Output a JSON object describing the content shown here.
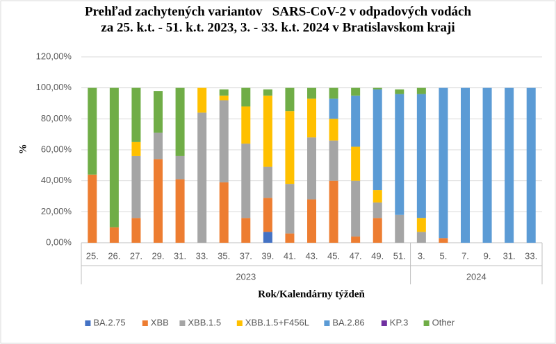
{
  "chart_data": {
    "type": "stacked_bar",
    "title": [
      "Prehľad zachytených variantov   SARS-CoV-2 v odpadových vodách",
      "za 25. k.t. - 51. k.t. 2023, 3. - 33. k.t. 2024 v Bratislavskom kraji"
    ],
    "x_label": "Rok/Kalendárny týždeň",
    "y_label": "%",
    "groups": [
      {
        "label": "2023",
        "categories": [
          "25.",
          "26.",
          "27.",
          "29.",
          "31.",
          "33.",
          "35.",
          "37.",
          "39.",
          "41.",
          "43.",
          "45.",
          "47.",
          "49.",
          "51."
        ]
      },
      {
        "label": "2024",
        "categories": [
          "3.",
          "5.",
          "7.",
          "9.",
          "31.",
          "33."
        ]
      }
    ],
    "ylim": [
      0,
      120
    ],
    "yticks": [
      {
        "value": 0,
        "label": "0,00%"
      },
      {
        "value": 20,
        "label": "20,00%"
      },
      {
        "value": 40,
        "label": "40,00%"
      },
      {
        "value": 60,
        "label": "60,00%"
      },
      {
        "value": 80,
        "label": "80,00%"
      },
      {
        "value": 100,
        "label": "100,00%"
      },
      {
        "value": 120,
        "label": "120,00%"
      }
    ],
    "grid": true,
    "legend": "bottom",
    "series": [
      {
        "name": "BA.2.75",
        "color": "#4472c4",
        "values": [
          0,
          0,
          0,
          0,
          0,
          0,
          0,
          0,
          7,
          0,
          0,
          0,
          0,
          0,
          0,
          0,
          0,
          0,
          0,
          0,
          0
        ]
      },
      {
        "name": "XBB",
        "color": "#ed7d31",
        "values": [
          44,
          10,
          16,
          54,
          41,
          0,
          39,
          16,
          22,
          6,
          28,
          40,
          4,
          16,
          0,
          0,
          3,
          0,
          0,
          0,
          0
        ]
      },
      {
        "name": "XBB.1.5",
        "color": "#a5a5a5",
        "values": [
          0,
          0,
          40,
          17,
          15,
          84,
          53,
          48,
          20,
          32,
          40,
          26,
          36,
          10,
          18,
          7,
          0,
          0,
          0,
          0,
          0
        ]
      },
      {
        "name": "XBB.1.5+F456L",
        "color": "#ffc000",
        "values": [
          0,
          0,
          9,
          0,
          0,
          16,
          3,
          24,
          46,
          47,
          25,
          14,
          22,
          8,
          0,
          9,
          0,
          0,
          0,
          0,
          0
        ]
      },
      {
        "name": "BA.2.86",
        "color": "#5b9bd5",
        "values": [
          0,
          0,
          0,
          0,
          0,
          0,
          0,
          0,
          0,
          0,
          0,
          13,
          33,
          65,
          78,
          80,
          97,
          100,
          100,
          100,
          100
        ]
      },
      {
        "name": "KP.3",
        "color": "#7030a0",
        "values": [
          0,
          0,
          0,
          0,
          0,
          0,
          0,
          0,
          0,
          0,
          0,
          0,
          0,
          0,
          0,
          0,
          0,
          0,
          0,
          0,
          0
        ]
      },
      {
        "name": "Other",
        "color": "#70ad47",
        "values": [
          56,
          90,
          35,
          27,
          44,
          0,
          4,
          12,
          4,
          15,
          7,
          7,
          5,
          1,
          3,
          4,
          0,
          0,
          0,
          0,
          0
        ]
      }
    ]
  }
}
